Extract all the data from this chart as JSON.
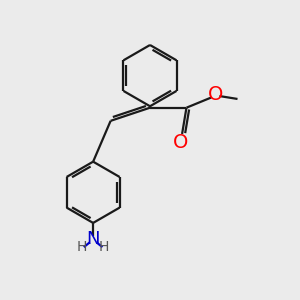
{
  "background_color": "#ebebeb",
  "bond_color": "#1a1a1a",
  "O_color": "#ff0000",
  "N_color": "#0000cc",
  "H_color": "#555555",
  "line_width": 1.6,
  "fig_size": [
    3.0,
    3.0
  ],
  "dpi": 100,
  "xlim": [
    0,
    10
  ],
  "ylim": [
    0,
    10
  ]
}
